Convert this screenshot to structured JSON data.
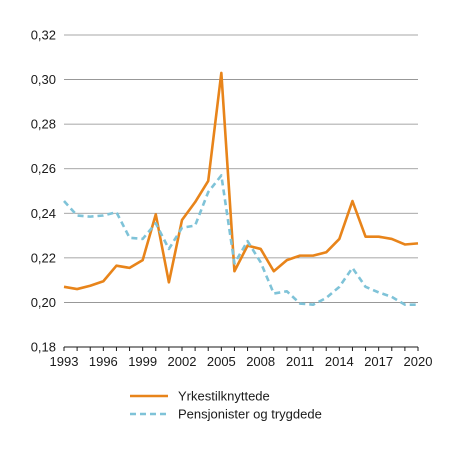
{
  "chart_data": {
    "type": "line",
    "title": "",
    "xlabel": "",
    "ylabel": "",
    "xlim": [
      1993,
      2020
    ],
    "ylim": [
      0.18,
      0.32
    ],
    "x_ticks": [
      1993,
      1996,
      1999,
      2002,
      2005,
      2008,
      2011,
      2014,
      2017,
      2020
    ],
    "x_tick_labels": [
      "1993",
      "1996",
      "1999",
      "2002",
      "2005",
      "2008",
      "2011",
      "2014",
      "2017",
      "2020"
    ],
    "y_ticks": [
      0.18,
      0.2,
      0.22,
      0.24,
      0.26,
      0.28,
      0.3,
      0.32
    ],
    "y_tick_labels": [
      "0,18",
      "0,20",
      "0,22",
      "0,24",
      "0,26",
      "0,28",
      "0,30",
      "0,32"
    ],
    "grid": "horizontal",
    "legend_position": "bottom",
    "x": [
      1993,
      1994,
      1995,
      1996,
      1997,
      1998,
      1999,
      2000,
      2001,
      2002,
      2003,
      2004,
      2005,
      2006,
      2007,
      2008,
      2009,
      2010,
      2011,
      2012,
      2013,
      2014,
      2015,
      2016,
      2017,
      2018,
      2019,
      2020
    ],
    "series": [
      {
        "name": "Yrkestilknyttede",
        "color": "#e8841a",
        "style": "solid",
        "values": [
          0.207,
          0.206,
          0.2075,
          0.2095,
          0.2165,
          0.2155,
          0.219,
          0.2395,
          0.209,
          0.237,
          0.245,
          0.2545,
          0.303,
          0.214,
          0.2255,
          0.224,
          0.214,
          0.219,
          0.221,
          0.221,
          0.2225,
          0.2285,
          0.2455,
          0.2295,
          0.2295,
          0.2285,
          0.226,
          0.2265
        ]
      },
      {
        "name": "Pensjonister og trygdede",
        "color": "#7fc3d8",
        "style": "dashed",
        "values": [
          0.2455,
          0.239,
          0.2385,
          0.239,
          0.2405,
          0.229,
          0.2285,
          0.2355,
          0.224,
          0.2335,
          0.2345,
          0.2495,
          0.257,
          0.2175,
          0.2275,
          0.218,
          0.204,
          0.205,
          0.1995,
          0.199,
          0.202,
          0.207,
          0.2155,
          0.207,
          0.2045,
          0.2025,
          0.199,
          0.199
        ]
      }
    ]
  }
}
